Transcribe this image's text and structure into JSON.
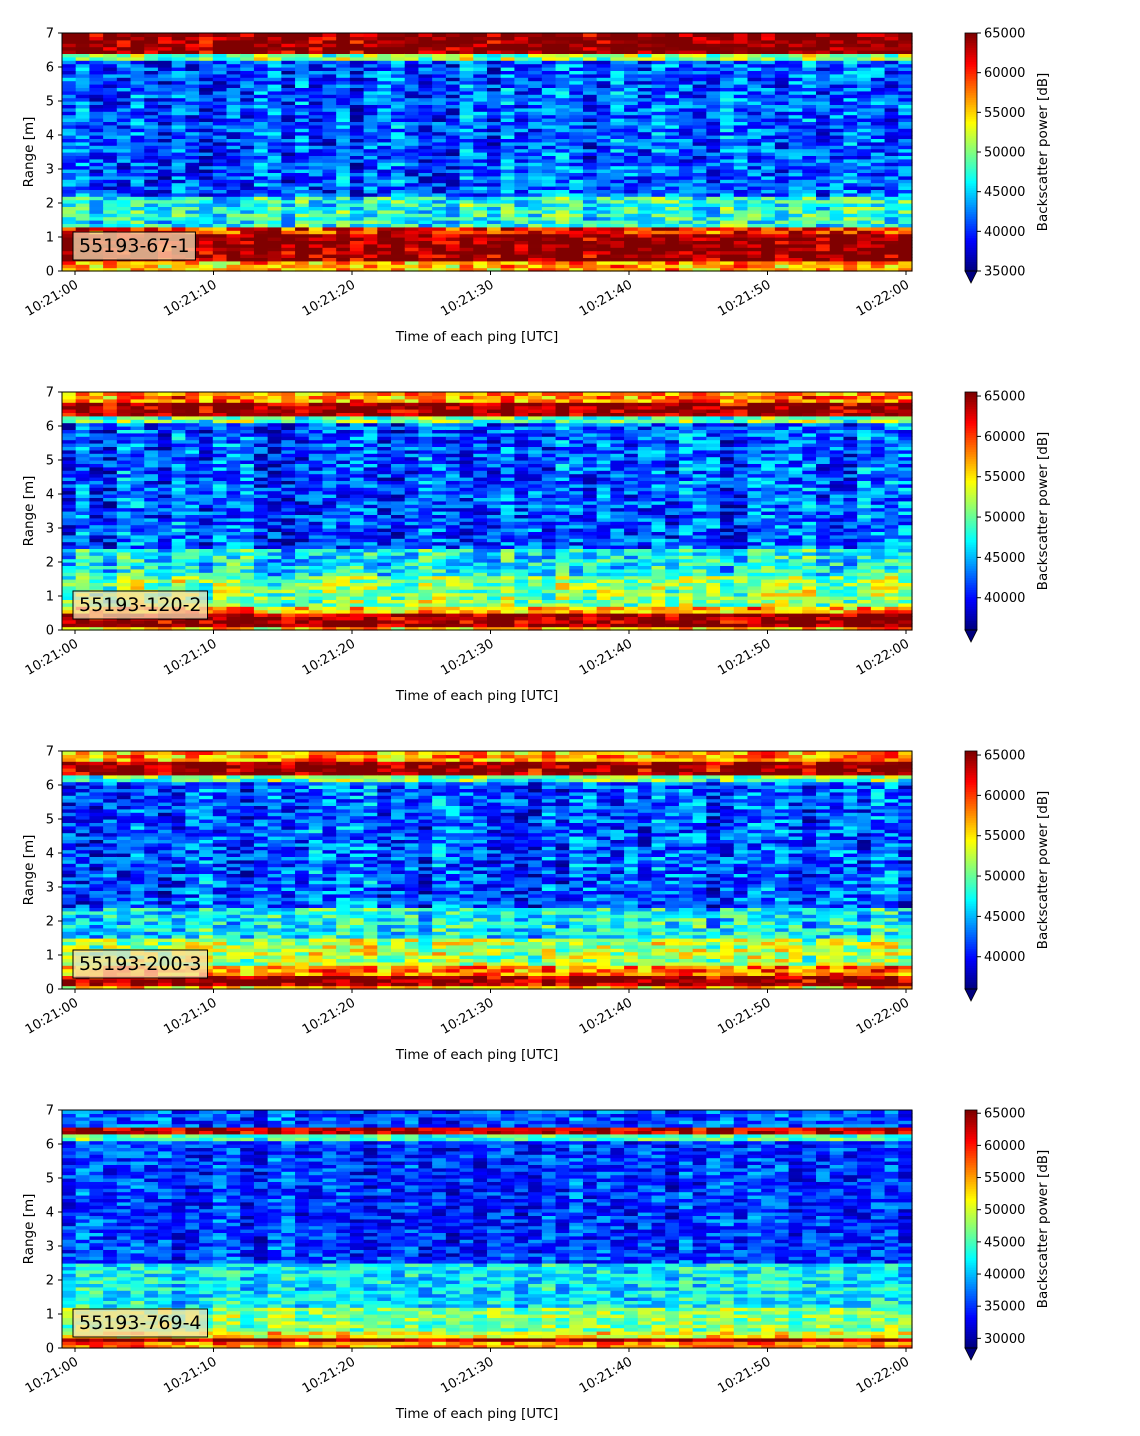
{
  "colors": {
    "colormap": "jet",
    "idbox_fill": "#f5deb3",
    "idbox_edge": "#000000"
  },
  "chart_data": [
    {
      "type": "heatmap",
      "title": "",
      "id_label": "55193-67-1",
      "xlabel": "Time of each ping [UTC]",
      "ylabel": "Range [m]",
      "x_ticks": [
        "10:21:00",
        "10:21:10",
        "10:21:20",
        "10:21:30",
        "10:21:40",
        "10:21:50",
        "10:22:00"
      ],
      "x_range": [
        "10:21:00",
        "10:22:00"
      ],
      "y_ticks": [
        "0",
        "1",
        "2",
        "3",
        "4",
        "5",
        "6",
        "7"
      ],
      "ylim": [
        0,
        7
      ],
      "colorbar": {
        "label": "Backscatter power [dB]",
        "ticks": [
          "35000",
          "40000",
          "45000",
          "50000",
          "55000",
          "60000",
          "65000"
        ],
        "vmin": 35000,
        "vmax": 65000,
        "extend": "min"
      },
      "bands": [
        {
          "from": 0.0,
          "to": 0.3,
          "level": 56000
        },
        {
          "from": 0.3,
          "to": 1.1,
          "level": 65000
        },
        {
          "from": 1.1,
          "to": 1.3,
          "level": 60000
        },
        {
          "from": 1.3,
          "to": 2.2,
          "level": 47000
        },
        {
          "from": 2.2,
          "to": 6.2,
          "level": 41000
        },
        {
          "from": 6.2,
          "to": 6.45,
          "level": 50000
        },
        {
          "from": 6.45,
          "to": 7.0,
          "level": 65000
        }
      ]
    },
    {
      "type": "heatmap",
      "title": "",
      "id_label": "55193-120-2",
      "xlabel": "Time of each ping [UTC]",
      "ylabel": "Range [m]",
      "x_ticks": [
        "10:21:00",
        "10:21:10",
        "10:21:20",
        "10:21:30",
        "10:21:40",
        "10:21:50",
        "10:22:00"
      ],
      "x_range": [
        "10:21:00",
        "10:22:00"
      ],
      "y_ticks": [
        "0",
        "1",
        "2",
        "3",
        "4",
        "5",
        "6",
        "7"
      ],
      "ylim": [
        0,
        7
      ],
      "colorbar": {
        "label": "Backscatter power [dB]",
        "ticks": [
          "40000",
          "45000",
          "50000",
          "55000",
          "60000",
          "65000"
        ],
        "vmin": 36000,
        "vmax": 65500,
        "extend": "min"
      },
      "bands": [
        {
          "from": 0.0,
          "to": 0.1,
          "level": 56000
        },
        {
          "from": 0.1,
          "to": 0.5,
          "level": 65000
        },
        {
          "from": 0.5,
          "to": 0.75,
          "level": 57000
        },
        {
          "from": 0.75,
          "to": 1.6,
          "level": 51000
        },
        {
          "from": 1.6,
          "to": 2.4,
          "level": 47000
        },
        {
          "from": 2.4,
          "to": 6.1,
          "level": 42000
        },
        {
          "from": 6.1,
          "to": 6.3,
          "level": 50000
        },
        {
          "from": 6.3,
          "to": 6.75,
          "level": 65000
        },
        {
          "from": 6.75,
          "to": 7.0,
          "level": 58000
        }
      ]
    },
    {
      "type": "heatmap",
      "title": "",
      "id_label": "55193-200-3",
      "xlabel": "Time of each ping [UTC]",
      "ylabel": "Range [m]",
      "x_ticks": [
        "10:21:00",
        "10:21:10",
        "10:21:20",
        "10:21:30",
        "10:21:40",
        "10:21:50",
        "10:22:00"
      ],
      "x_range": [
        "10:21:00",
        "10:22:00"
      ],
      "y_ticks": [
        "0",
        "1",
        "2",
        "3",
        "4",
        "5",
        "6",
        "7"
      ],
      "ylim": [
        0,
        7
      ],
      "colorbar": {
        "label": "Backscatter power [dB]",
        "ticks": [
          "40000",
          "45000",
          "50000",
          "55000",
          "60000",
          "65000"
        ],
        "vmin": 36000,
        "vmax": 65500,
        "extend": "min"
      },
      "bands": [
        {
          "from": 0.0,
          "to": 0.1,
          "level": 56000
        },
        {
          "from": 0.1,
          "to": 0.45,
          "level": 65000
        },
        {
          "from": 0.45,
          "to": 0.7,
          "level": 58000
        },
        {
          "from": 0.7,
          "to": 1.5,
          "level": 52000
        },
        {
          "from": 1.5,
          "to": 2.4,
          "level": 47000
        },
        {
          "from": 2.4,
          "to": 6.1,
          "level": 42000
        },
        {
          "from": 6.1,
          "to": 6.3,
          "level": 50000
        },
        {
          "from": 6.3,
          "to": 6.75,
          "level": 65000
        },
        {
          "from": 6.75,
          "to": 7.0,
          "level": 57000
        }
      ]
    },
    {
      "type": "heatmap",
      "title": "",
      "id_label": "55193-769-4",
      "xlabel": "Time of each ping [UTC]",
      "ylabel": "Range [m]",
      "x_ticks": [
        "10:21:00",
        "10:21:10",
        "10:21:20",
        "10:21:30",
        "10:21:40",
        "10:21:50",
        "10:22:00"
      ],
      "x_range": [
        "10:21:00",
        "10:22:00"
      ],
      "y_ticks": [
        "0",
        "1",
        "2",
        "3",
        "4",
        "5",
        "6",
        "7"
      ],
      "ylim": [
        0,
        7
      ],
      "colorbar": {
        "label": "Backscatter power [dB]",
        "ticks": [
          "30000",
          "35000",
          "40000",
          "45000",
          "50000",
          "55000",
          "60000",
          "65000"
        ],
        "vmin": 28500,
        "vmax": 65500,
        "extend": "min"
      },
      "bands": [
        {
          "from": 0.0,
          "to": 0.18,
          "level": 56000
        },
        {
          "from": 0.18,
          "to": 0.35,
          "level": 65000
        },
        {
          "from": 0.35,
          "to": 0.5,
          "level": 52000
        },
        {
          "from": 0.5,
          "to": 1.2,
          "level": 47000
        },
        {
          "from": 1.2,
          "to": 2.5,
          "level": 42000
        },
        {
          "from": 2.5,
          "to": 6.1,
          "level": 35000
        },
        {
          "from": 6.1,
          "to": 6.35,
          "level": 45000
        },
        {
          "from": 6.35,
          "to": 6.55,
          "level": 63000
        },
        {
          "from": 6.55,
          "to": 7.0,
          "level": 36000
        }
      ]
    }
  ]
}
